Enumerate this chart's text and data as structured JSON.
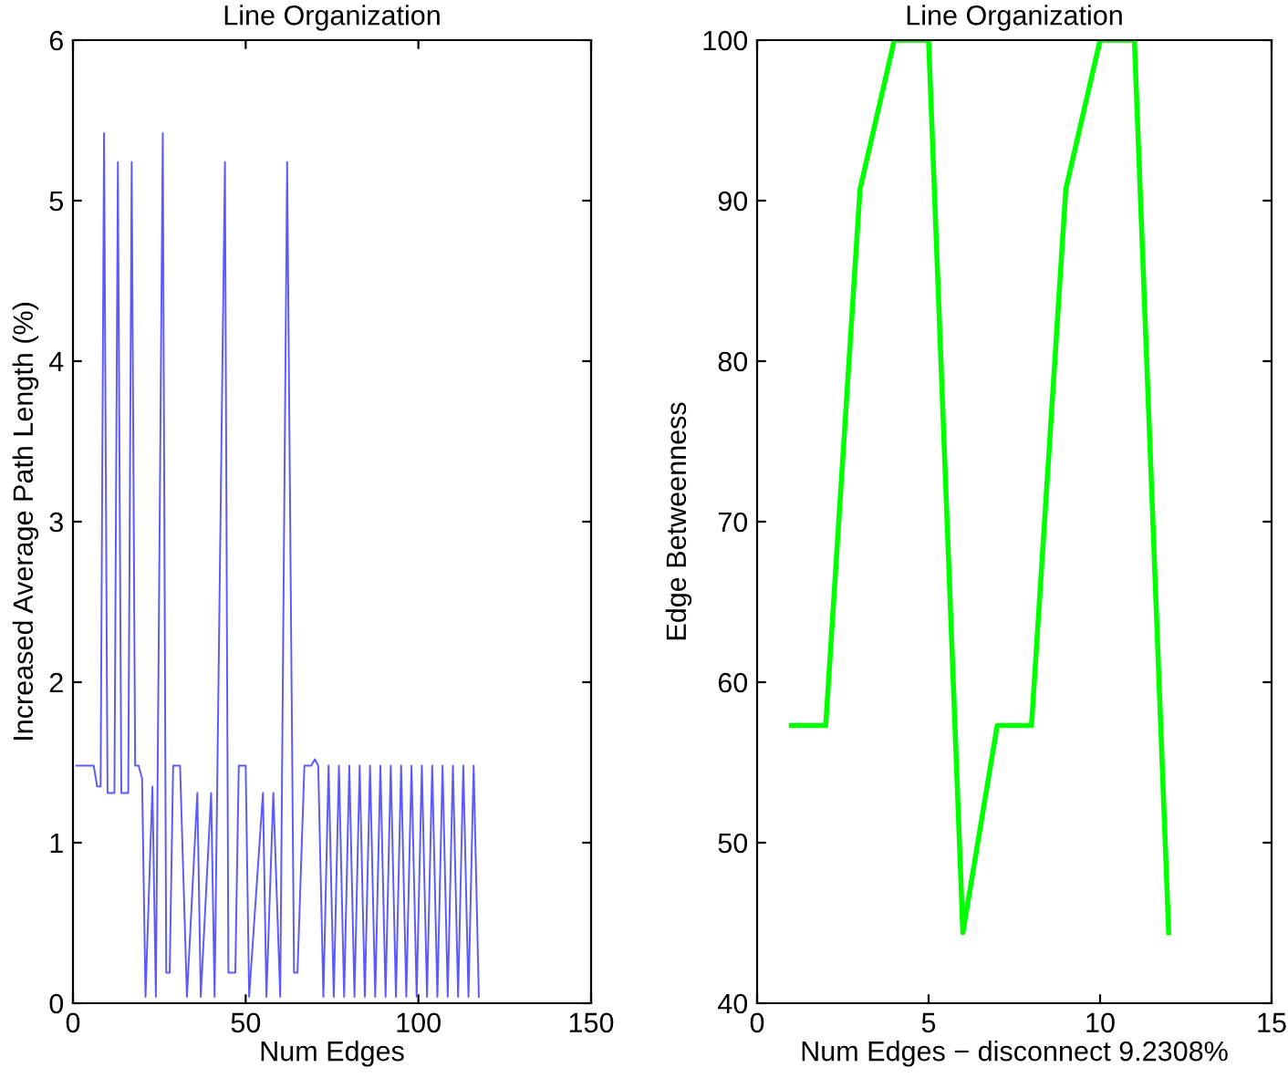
{
  "chart_data": [
    {
      "type": "line",
      "title": "Line Organization",
      "xlabel": "Num Edges",
      "ylabel": "Increased Average Path Length (%)",
      "xlim": [
        0,
        150
      ],
      "xticks": [
        0,
        50,
        100,
        150
      ],
      "ylim": [
        0,
        6
      ],
      "yticks": [
        0,
        1,
        2,
        3,
        4,
        5,
        6
      ],
      "grid": false,
      "legend": false,
      "series": [
        {
          "color": "#5a5aff",
          "x": [
            1,
            6,
            7,
            8,
            9,
            10,
            12,
            13,
            14,
            16,
            17,
            18,
            19,
            20,
            21,
            23,
            24,
            26,
            27,
            28,
            29,
            31,
            33,
            36,
            37,
            40,
            41,
            44,
            45,
            47,
            48,
            50,
            51,
            55,
            56,
            58,
            60,
            62,
            64,
            65,
            67,
            69,
            70,
            71,
            72.5,
            74,
            75.5,
            77,
            78.5,
            80,
            81.5,
            83,
            84.5,
            86,
            87.5,
            89,
            90.5,
            92,
            93.5,
            95,
            96.5,
            98,
            99.5,
            101,
            102.5,
            104,
            105.5,
            107,
            108.5,
            110,
            111.5,
            113,
            114.5,
            116,
            117.5
          ],
          "values": [
            1.48,
            1.48,
            1.35,
            1.35,
            5.42,
            1.31,
            1.31,
            5.24,
            1.31,
            1.31,
            5.24,
            1.48,
            1.48,
            1.4,
            0.04,
            1.35,
            0.04,
            5.42,
            0.19,
            0.19,
            1.48,
            1.48,
            0.04,
            1.31,
            0.04,
            1.31,
            0.04,
            5.24,
            0.19,
            0.19,
            1.48,
            1.48,
            0.04,
            1.31,
            0.04,
            1.31,
            0.04,
            5.24,
            0.19,
            0.19,
            1.48,
            1.48,
            1.52,
            1.48,
            0.04,
            1.48,
            0.04,
            1.48,
            0.04,
            1.48,
            0.04,
            1.48,
            0.04,
            1.48,
            0.04,
            1.48,
            0.04,
            1.48,
            0.04,
            1.48,
            0.04,
            1.48,
            0.04,
            1.48,
            0.04,
            1.48,
            0.04,
            1.48,
            0.04,
            1.48,
            0.04,
            1.48,
            0.04,
            1.48,
            0.04
          ]
        }
      ]
    },
    {
      "type": "line",
      "title": "Line Organization",
      "xlabel": "Num Edges − disconnect 9.2308%",
      "ylabel": "Edge Betweenness",
      "xlim": [
        0,
        15
      ],
      "xticks": [
        0,
        5,
        10,
        15
      ],
      "ylim": [
        40,
        100
      ],
      "yticks": [
        40,
        50,
        60,
        70,
        80,
        90,
        100
      ],
      "grid": false,
      "legend": false,
      "series": [
        {
          "color": "#00ff00",
          "x": [
            1,
            2,
            3,
            4,
            5,
            6,
            7,
            8,
            9,
            10,
            11,
            12
          ],
          "values": [
            57.3,
            57.3,
            90.7,
            100,
            100,
            44.4,
            57.3,
            57.3,
            90.7,
            100,
            100,
            44.4
          ]
        }
      ]
    }
  ]
}
